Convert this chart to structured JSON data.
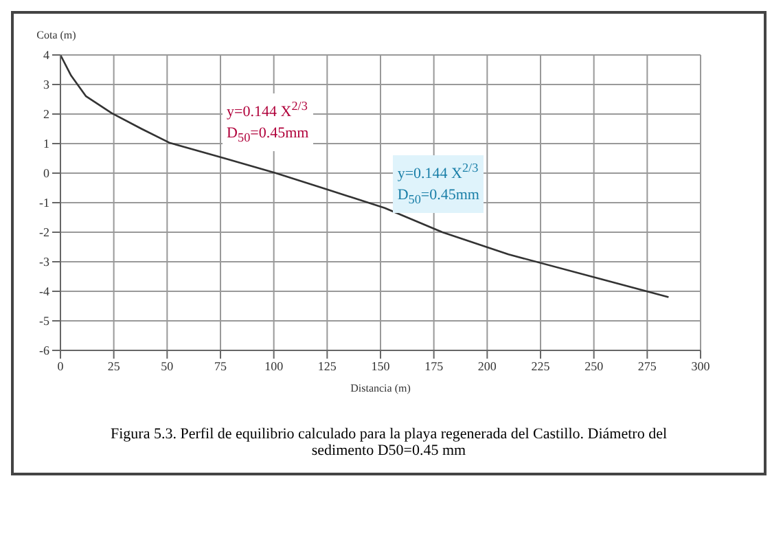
{
  "chart_data": {
    "type": "line",
    "xlabel": "Distancia (m)",
    "ylabel": "Cota (m)",
    "x": [
      0,
      5,
      12,
      24,
      38,
      51,
      77,
      101,
      125,
      152,
      179,
      210,
      254,
      285
    ],
    "series": [
      {
        "color": "#333333",
        "values": [
          4,
          3.3,
          2.6,
          2.03,
          1.5,
          1.03,
          0.5,
          0.0,
          -0.55,
          -1.18,
          -2.0,
          -2.75,
          -3.6,
          -4.2
        ]
      }
    ],
    "xlim": [
      0,
      300
    ],
    "xticks": [
      0,
      25,
      50,
      75,
      100,
      125,
      150,
      175,
      200,
      225,
      250,
      275,
      300
    ],
    "ylim": [
      -6,
      4
    ],
    "yticks": [
      -6,
      -5,
      -4,
      -3,
      -2,
      -1,
      0,
      1,
      2,
      3,
      4
    ],
    "grid": true,
    "legend": false,
    "marker": "none",
    "line_style": "solid",
    "annotations": [
      "y=0.144 X$^{2/3}$",
      "D$_{50}$=0.45mm",
      "y=0.144 X$^{2/3}$",
      "D$_{50}$=0.45mm",
      "Figura 5.3. Perfil de equilibrio calculado para la playa regenerada del Castillo. Diámetro del sedimento D50=0.45 mm"
    ]
  }
}
